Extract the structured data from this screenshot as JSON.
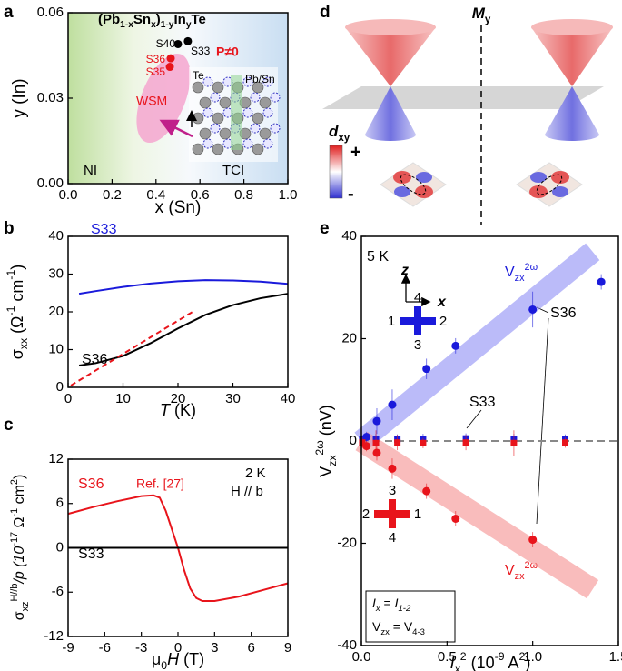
{
  "chart_data": [
    {
      "type": "scatter",
      "panel": "a",
      "title": [
        "(Pb",
        "1-x",
        "Sn",
        "x",
        ")",
        "1-y",
        "In",
        "y",
        "Te"
      ],
      "x_label": "x (Sn)",
      "y_label": "y (In)",
      "xlim": [
        0,
        1
      ],
      "ylim": [
        0,
        0.06
      ],
      "xticks": [
        {
          "value": 0,
          "label": "0.0"
        },
        0.2,
        0.4,
        0.6,
        0.8,
        {
          "value": 1,
          "label": "1.0"
        }
      ],
      "yticks": [
        {
          "value": 0,
          "label": "0.00"
        },
        {
          "value": 0.03,
          "label": "0.03"
        },
        {
          "value": 0.06,
          "label": "0.06"
        }
      ],
      "series": [
        {
          "name": "S40",
          "color": "#000000",
          "x": [
            0.5
          ],
          "values": [
            0.049
          ]
        },
        {
          "name": "S33",
          "color": "#000000",
          "x": [
            0.545
          ],
          "values": [
            0.05
          ]
        },
        {
          "name": "S36",
          "color": "#e8141b",
          "x": [
            0.467
          ],
          "values": [
            0.044
          ]
        },
        {
          "name": "S35",
          "color": "#e8141b",
          "x": [
            0.463
          ],
          "values": [
            0.041
          ]
        }
      ],
      "regions": [
        "NI",
        "TCI",
        "WSM"
      ],
      "annotations": [
        "P≠0",
        "Te",
        "Pb/Sn"
      ]
    },
    {
      "type": "line",
      "panel": "b",
      "x_label": [
        "T",
        " (K)"
      ],
      "y_label": [
        "σ",
        "xx",
        " (Ω",
        "-1",
        " cm",
        "-1",
        ")"
      ],
      "xlim": [
        0,
        40
      ],
      "ylim": [
        0,
        40
      ],
      "xticks": [
        0,
        10,
        20,
        30,
        40
      ],
      "yticks": [
        0,
        10,
        20,
        30,
        40
      ],
      "series": [
        {
          "name": "S33",
          "color": "#1a1adb",
          "x": [
            2,
            5,
            10,
            15,
            20,
            25,
            30,
            35,
            40
          ],
          "values": [
            24.8,
            25.5,
            26.6,
            27.5,
            28.1,
            28.4,
            28.3,
            28.0,
            27.4
          ]
        },
        {
          "name": "S36",
          "color": "#000000",
          "x": [
            2,
            5,
            10,
            15,
            20,
            25,
            30,
            35,
            40
          ],
          "values": [
            5.8,
            6.4,
            8.3,
            11.7,
            15.6,
            19.2,
            21.8,
            23.6,
            24.8
          ]
        },
        {
          "color": "#e8141b",
          "dash": true,
          "x": [
            0.5,
            23
          ],
          "values": [
            0.5,
            20.3
          ]
        }
      ]
    },
    {
      "type": "line",
      "panel": "c",
      "x_label": [
        "μ",
        "0",
        "H",
        " (T)"
      ],
      "y_label": [
        "σ",
        "xz",
        "H//b",
        "/p (10",
        "-17",
        " Ω",
        "-1",
        " cm",
        "2",
        ")"
      ],
      "xlim": [
        -9,
        9
      ],
      "ylim": [
        -12,
        12
      ],
      "xticks": [
        -9,
        -6,
        -3,
        0,
        3,
        6,
        9
      ],
      "yticks": [
        -12,
        -6,
        0,
        6,
        12
      ],
      "series": [
        {
          "name": "S36",
          "color": "#e8141b",
          "x": [
            -9,
            -7,
            -5,
            -3,
            -2,
            -1.5,
            -1,
            -0.5,
            0,
            0.5,
            1,
            1.5,
            2,
            3,
            5,
            7,
            9
          ],
          "values": [
            4.6,
            5.5,
            6.3,
            7.0,
            7.1,
            6.8,
            5.0,
            2.5,
            0,
            -3.0,
            -5.5,
            -6.8,
            -7.2,
            -7.2,
            -6.6,
            -5.7,
            -4.8
          ]
        },
        {
          "name": "S33",
          "color": "#000000",
          "x": [
            -9,
            9
          ],
          "values": [
            0,
            0
          ]
        }
      ],
      "annotations": [
        "Ref. [27]",
        "2 K",
        "H // b"
      ]
    },
    {
      "type": "scatter",
      "panel": "e",
      "x_label": [
        "I",
        "x",
        "2",
        " (10",
        "-9",
        " A",
        "2",
        ")"
      ],
      "y_label": [
        "V",
        "zx",
        "2ω",
        " (nV)"
      ],
      "xlim": [
        0,
        1.5
      ],
      "ylim": [
        -40,
        40
      ],
      "xticks": [
        {
          "value": 0,
          "label": "0.0"
        },
        0.5,
        {
          "value": 1,
          "label": "1.0"
        },
        1.5
      ],
      "yticks": [
        -40,
        -20,
        0,
        20,
        40
      ],
      "zero_line": true,
      "series": [
        {
          "color": "#8e8ef5",
          "style": "band",
          "x": [
            0,
            1.35
          ],
          "values": [
            0,
            37
          ]
        },
        {
          "color": "#f59090",
          "style": "band",
          "x": [
            0,
            1.35
          ],
          "values": [
            0,
            -29
          ]
        },
        {
          "name": "S36",
          "color": "#1a1adb",
          "marker": "circle",
          "x": [
            0.03,
            0.09,
            0.18,
            0.38,
            0.55,
            1.0,
            1.4
          ],
          "values": [
            0.8,
            3.9,
            7.1,
            14.1,
            18.6,
            25.7,
            31.1
          ],
          "errors": [
            1,
            2.5,
            3,
            2,
            1.5,
            3.5,
            1.5
          ]
        },
        {
          "color": "#e8141b",
          "marker": "circle",
          "x": [
            0.03,
            0.09,
            0.18,
            0.38,
            0.55,
            1.0
          ],
          "values": [
            -1,
            -2.3,
            -5.4,
            -9.8,
            -15.2,
            -19.3
          ],
          "errors": [
            1,
            1.5,
            2,
            1.5,
            1.5,
            1.5
          ]
        },
        {
          "name": "S33",
          "color": "#1a1adb",
          "marker": "square",
          "x": [
            0.005,
            0.085,
            0.21,
            0.36,
            0.61,
            0.89,
            1.19
          ],
          "values": [
            0.3,
            0.4,
            0.3,
            0.4,
            0.5,
            0.4,
            0.3
          ],
          "errors": [
            0.8,
            1,
            1,
            1,
            1,
            1,
            1
          ]
        },
        {
          "color": "#e8141b",
          "marker": "square",
          "x": [
            0.005,
            0.085,
            0.21,
            0.36,
            0.61,
            0.89,
            1.19
          ],
          "values": [
            -0.3,
            -0.4,
            -0.3,
            -0.4,
            -0.3,
            -0.4,
            -0.3
          ],
          "errors": [
            1,
            2.5,
            1.5,
            1,
            1.5,
            2.5,
            1
          ]
        }
      ],
      "annotations": {
        "temperature": "5 K",
        "fit_labels": [
          [
            "V",
            "zx",
            "2ω"
          ],
          [
            "V",
            "zx",
            "2ω"
          ]
        ],
        "axes": [
          "z",
          "x"
        ],
        "contacts_blue": [
          "4",
          "1",
          "2",
          "3"
        ],
        "contacts_red": [
          "3",
          "2",
          "1",
          "4"
        ],
        "current": [
          "I",
          "x",
          " = ",
          "I",
          "1-2"
        ],
        "voltage": [
          "V",
          "zx",
          " = V",
          "4-3"
        ]
      }
    }
  ],
  "diagram": {
    "panel": "d",
    "mirror": [
      "M",
      "y"
    ],
    "orbital": [
      "d",
      "xy"
    ],
    "plus": "+",
    "minus": "-"
  }
}
